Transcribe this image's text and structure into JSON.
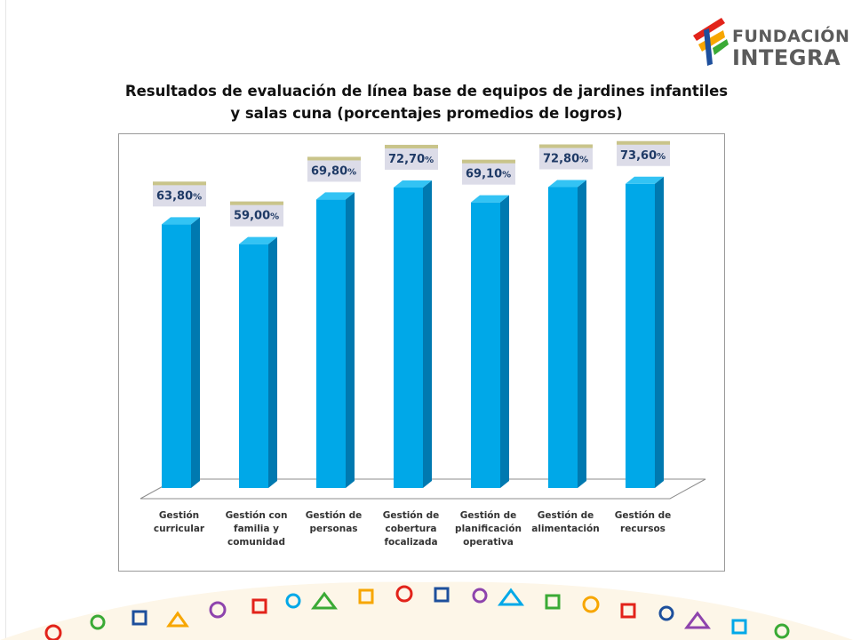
{
  "logo": {
    "line1": "FUNDACIÓN",
    "line2": "INTEGRA"
  },
  "chart_data": {
    "type": "bar",
    "title": "Resultados de evaluación de línea base de equipos de jardines infantiles y salas cuna (porcentajes promedios de logros)",
    "title_lines": [
      "Resultados de evaluación de línea base de equipos de jardines infantiles",
      "y salas cuna (porcentajes promedios de logros)"
    ],
    "categories": [
      [
        "Gestión",
        "curricular"
      ],
      [
        "Gestión con",
        "familia y",
        "comunidad"
      ],
      [
        "Gestión de",
        "personas"
      ],
      [
        "Gestión de",
        "cobertura",
        "focalizada"
      ],
      [
        "Gestión de",
        "planificación",
        "operativa"
      ],
      [
        "Gestión de",
        "alimentación"
      ],
      [
        "Gestión de",
        "recursos"
      ]
    ],
    "values": [
      63.8,
      59.0,
      69.8,
      72.7,
      69.1,
      72.8,
      73.6
    ],
    "labels": [
      "63,80",
      "59,00",
      "69,80",
      "72,70",
      "69,10",
      "72,80",
      "73,60"
    ],
    "label_suffix": "%",
    "ylim": [
      0,
      80
    ],
    "grid": false,
    "bar_color": "#00a8e8",
    "bar_side_color": "#0079b0",
    "bar_top_color": "#33c3f4",
    "label_bg": "#dcdce8",
    "label_stripe": "#c9c48a"
  }
}
